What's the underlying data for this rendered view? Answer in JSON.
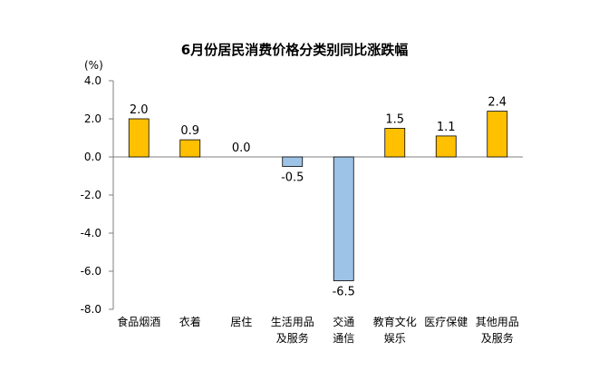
{
  "chart_data": {
    "type": "bar",
    "title": "6月份居民消费价格分类别同比涨跌幅",
    "unit_label": "(%)",
    "categories": [
      [
        "食品烟酒"
      ],
      [
        "衣着"
      ],
      [
        "居住"
      ],
      [
        "生活用品",
        "及服务"
      ],
      [
        "交通",
        "通信"
      ],
      [
        "教育文化",
        "娱乐"
      ],
      [
        "医疗保健"
      ],
      [
        "其他用品",
        "及服务"
      ]
    ],
    "values": [
      2.0,
      0.9,
      0.0,
      -0.5,
      -6.5,
      1.5,
      1.1,
      2.4
    ],
    "value_labels": [
      "2.0",
      "0.9",
      "0.0",
      "-0.5",
      "-6.5",
      "1.5",
      "1.1",
      "2.4"
    ],
    "ylim": [
      -8.0,
      4.0
    ],
    "yticks": [
      4.0,
      2.0,
      0.0,
      -2.0,
      -4.0,
      -6.0,
      -8.0
    ],
    "ytick_labels": [
      "4.0",
      "2.0",
      "0.0",
      "-2.0",
      "-4.0",
      "-6.0",
      "-8.0"
    ],
    "colors": {
      "positive": "#FFC000",
      "negative": "#9DC3E6",
      "bar_stroke": "#000000",
      "axis": "#7f7f7f"
    },
    "grid": false
  }
}
